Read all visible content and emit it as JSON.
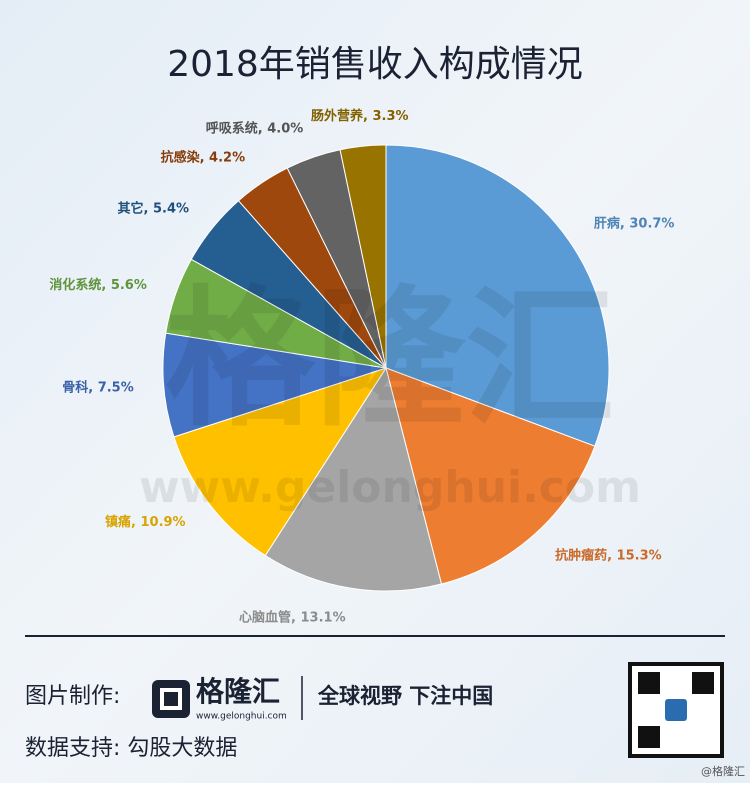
{
  "chart_data": {
    "type": "pie",
    "title": "2018年销售收入构成情况",
    "values": [
      30.7,
      15.3,
      13.1,
      10.9,
      7.5,
      5.6,
      5.4,
      4.2,
      4.0,
      3.3
    ],
    "value_labels": [
      "肝病, 30.7%",
      "抗肿瘤药, 15.3%",
      "心脑血管, 13.1%",
      "镇痛, 10.9%",
      "骨科, 7.5%",
      "消化系统, 5.6%",
      "其它, 5.4%",
      "抗感染, 4.2%",
      "呼吸系统, 4.0%",
      "肠外营养, 3.3%"
    ],
    "colors": [
      "#5b9bd5",
      "#ed7d31",
      "#a5a5a5",
      "#ffc000",
      "#4472c4",
      "#70ad47",
      "#255e91",
      "#9e480e",
      "#636363",
      "#997300"
    ]
  },
  "watermark": {
    "name": "格隆汇",
    "url": "www.gelonghui.com"
  },
  "footer": {
    "made_by": "图片制作:",
    "logo": "格隆汇",
    "logo_url": "www.gelonghui.com",
    "slogan": "全球视野 下注中国",
    "source": "数据支持:  勾股大数据",
    "handle": "@格隆汇"
  }
}
